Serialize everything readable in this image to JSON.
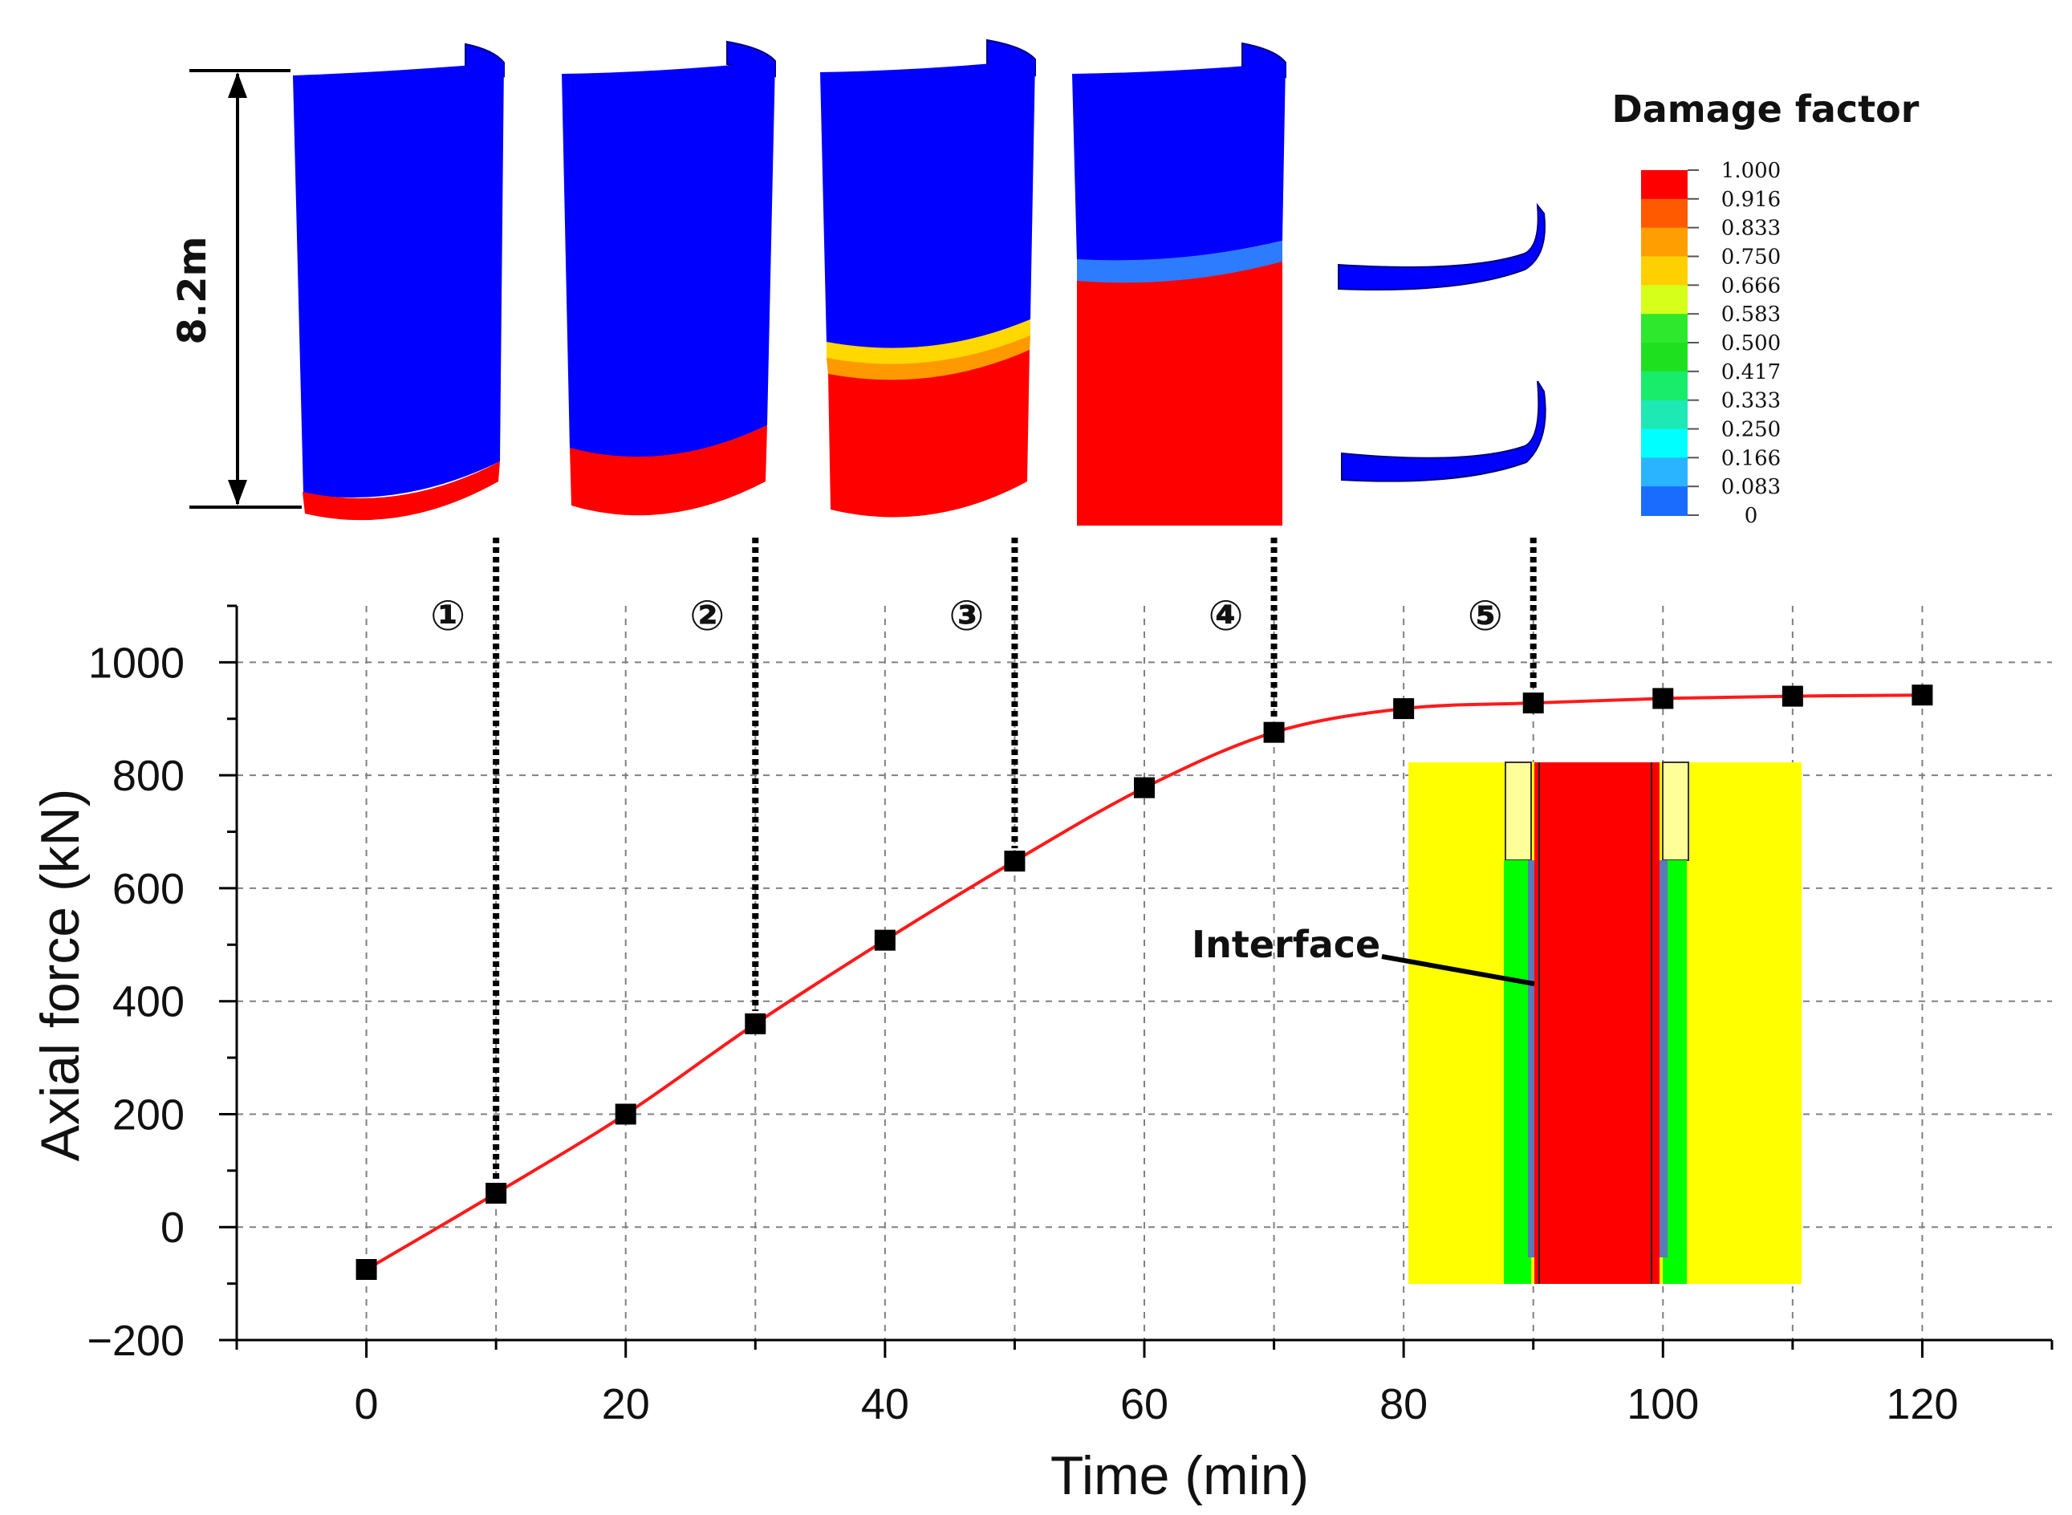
{
  "chart_data": {
    "type": "line",
    "title": "",
    "xlabel": "Time (min)",
    "ylabel": "Axial force (kN)",
    "xlim": [
      -10,
      130
    ],
    "ylim": [
      -200,
      1100
    ],
    "x_ticks": [
      0,
      20,
      40,
      60,
      80,
      100,
      120
    ],
    "x_tick_labels": [
      "0",
      "20",
      "40",
      "60",
      "80",
      "100",
      "120"
    ],
    "y_ticks": [
      -200,
      0,
      200,
      400,
      600,
      800,
      1000
    ],
    "y_tick_labels": [
      "−200",
      "0",
      "200",
      "400",
      "600",
      "800",
      "1000"
    ],
    "grid": true,
    "series": [
      {
        "name": "Axial force",
        "x": [
          0,
          10,
          20,
          30,
          40,
          50,
          60,
          70,
          80,
          90,
          100,
          110,
          120
        ],
        "values": [
          -75,
          60,
          200,
          360,
          508,
          648,
          778,
          876,
          918,
          928,
          936,
          940,
          942
        ]
      }
    ],
    "stages": [
      {
        "label": "①",
        "time": 10
      },
      {
        "label": "②",
        "time": 30
      },
      {
        "label": "③",
        "time": 50
      },
      {
        "label": "④",
        "time": 70
      },
      {
        "label": "⑤",
        "time": 90
      }
    ],
    "height_label": "8.2m",
    "legend": {
      "title": "Damage factor",
      "levels": [
        "1.000",
        "0.916",
        "0.833",
        "0.750",
        "0.666",
        "0.583",
        "0.500",
        "0.417",
        "0.333",
        "0.250",
        "0.166",
        "0.083",
        "0"
      ]
    },
    "inset_annotation": "Interface"
  },
  "colors": {
    "line": "#ff1a1a",
    "marker": "#000000",
    "grid": "#808080",
    "damage_low": "#0000ff",
    "damage_high": "#ff0000",
    "inset_background": "#ffff00",
    "inset_green": "#00ff00"
  }
}
